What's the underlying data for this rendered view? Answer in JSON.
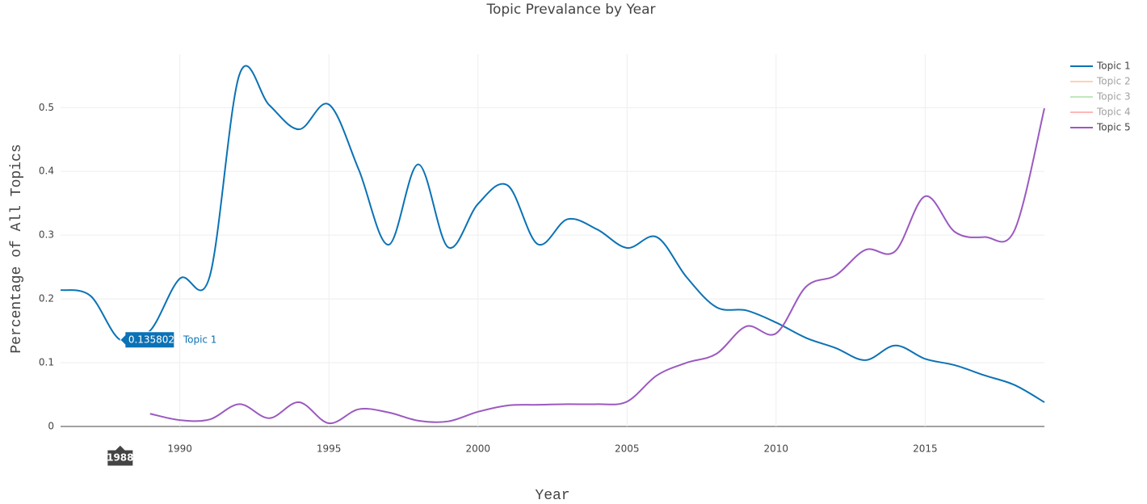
{
  "chart_data": {
    "type": "line",
    "title": "Topic Prevalance by Year",
    "xlabel": "Year",
    "ylabel": "Percentage of All Topics",
    "x": [
      1986,
      1987,
      1988,
      1989,
      1990,
      1991,
      1992,
      1993,
      1994,
      1995,
      1996,
      1997,
      1998,
      1999,
      2000,
      2001,
      2002,
      2003,
      2004,
      2005,
      2006,
      2007,
      2008,
      2009,
      2010,
      2011,
      2012,
      2013,
      2014,
      2015,
      2016,
      2017,
      2018,
      2019
    ],
    "series": [
      {
        "name": "Topic 1",
        "color": "#0b72b5",
        "visible": true,
        "values": [
          0.214,
          0.205,
          0.1358025,
          0.15,
          0.232,
          0.235,
          0.552,
          0.504,
          0.466,
          0.505,
          0.403,
          0.285,
          0.411,
          0.281,
          0.349,
          0.378,
          0.286,
          0.325,
          0.309,
          0.28,
          0.297,
          0.234,
          0.187,
          0.182,
          0.163,
          0.139,
          0.123,
          0.104,
          0.127,
          0.106,
          0.096,
          0.08,
          0.065,
          0.038
        ]
      },
      {
        "name": "Topic 2",
        "color": "#ffa76a",
        "visible": false
      },
      {
        "name": "Topic 3",
        "color": "#7fd17f",
        "visible": false
      },
      {
        "name": "Topic 4",
        "color": "#ff7373",
        "visible": false
      },
      {
        "name": "Topic 5",
        "color": "#9b59c0",
        "visible": true,
        "values": [
          null,
          null,
          null,
          0.02,
          0.01,
          0.011,
          0.035,
          0.013,
          0.038,
          0.005,
          0.027,
          0.022,
          0.009,
          0.008,
          0.023,
          0.033,
          0.034,
          0.035,
          0.035,
          0.039,
          0.08,
          0.1,
          0.114,
          0.157,
          0.146,
          0.219,
          0.237,
          0.277,
          0.275,
          0.361,
          0.305,
          0.297,
          0.308,
          0.499
        ]
      }
    ],
    "xlim": [
      1986,
      2019
    ],
    "xticks": [
      1990,
      1995,
      2000,
      2005,
      2010,
      2015
    ],
    "ylim": [
      0,
      0.584
    ],
    "yticks": [
      0,
      0.1,
      0.2,
      0.3,
      0.4,
      0.5
    ],
    "grid": true,
    "legend": "right",
    "hover": {
      "series": 0,
      "index": 2
    }
  }
}
